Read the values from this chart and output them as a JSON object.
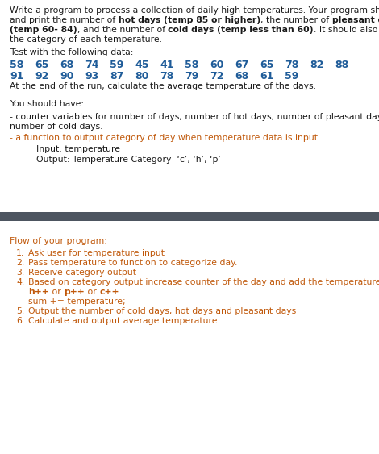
{
  "bg_color": "#ffffff",
  "divider_color": "#4d5560",
  "text_color_black": "#1a1a1a",
  "text_color_orange": "#c0580a",
  "text_color_blue": "#1f5c99",
  "flow_items": [
    "Ask user for temperature input",
    "Pass temperature to function to categorize day.",
    "Receive category output",
    "Based on category output increase counter of the day and add the temperature to sum.",
    "Output the number of cold days, hot days and pleasant days",
    "Calculate and output average temperature."
  ]
}
